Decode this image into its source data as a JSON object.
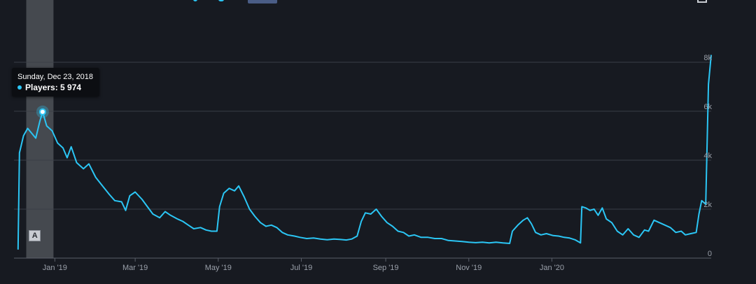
{
  "chart_data": {
    "type": "line",
    "title": "",
    "xlabel": "",
    "ylabel": "",
    "series": [
      {
        "name": "Players",
        "color": "#2bc6f5",
        "points": [
          [
            "2018-12-05",
            350
          ],
          [
            "2018-12-06",
            4300
          ],
          [
            "2018-12-09",
            5000
          ],
          [
            "2018-12-12",
            5300
          ],
          [
            "2018-12-15",
            5100
          ],
          [
            "2018-12-18",
            4900
          ],
          [
            "2018-12-21",
            5600
          ],
          [
            "2018-12-23",
            5974
          ],
          [
            "2018-12-26",
            5400
          ],
          [
            "2018-12-30",
            5200
          ],
          [
            "2019-01-03",
            4700
          ],
          [
            "2019-01-07",
            4500
          ],
          [
            "2019-01-10",
            4100
          ],
          [
            "2019-01-13",
            4550
          ],
          [
            "2019-01-17",
            3900
          ],
          [
            "2019-01-22",
            3650
          ],
          [
            "2019-01-26",
            3850
          ],
          [
            "2019-01-31",
            3300
          ],
          [
            "2019-02-05",
            2950
          ],
          [
            "2019-02-10",
            2600
          ],
          [
            "2019-02-14",
            2350
          ],
          [
            "2019-02-19",
            2300
          ],
          [
            "2019-02-22",
            1950
          ],
          [
            "2019-02-25",
            2550
          ],
          [
            "2019-03-01",
            2700
          ],
          [
            "2019-03-06",
            2400
          ],
          [
            "2019-03-10",
            2100
          ],
          [
            "2019-03-14",
            1800
          ],
          [
            "2019-03-19",
            1650
          ],
          [
            "2019-03-23",
            1900
          ],
          [
            "2019-03-27",
            1750
          ],
          [
            "2019-04-01",
            1600
          ],
          [
            "2019-04-05",
            1500
          ],
          [
            "2019-04-09",
            1350
          ],
          [
            "2019-04-13",
            1200
          ],
          [
            "2019-04-18",
            1250
          ],
          [
            "2019-04-22",
            1150
          ],
          [
            "2019-04-26",
            1100
          ],
          [
            "2019-04-30",
            1100
          ],
          [
            "2019-05-02",
            2100
          ],
          [
            "2019-05-05",
            2650
          ],
          [
            "2019-05-09",
            2850
          ],
          [
            "2019-05-13",
            2750
          ],
          [
            "2019-05-16",
            2950
          ],
          [
            "2019-05-20",
            2500
          ],
          [
            "2019-05-24",
            2000
          ],
          [
            "2019-05-28",
            1700
          ],
          [
            "2019-06-01",
            1450
          ],
          [
            "2019-06-05",
            1300
          ],
          [
            "2019-06-09",
            1350
          ],
          [
            "2019-06-13",
            1250
          ],
          [
            "2019-06-17",
            1050
          ],
          [
            "2019-06-21",
            950
          ],
          [
            "2019-06-26",
            900
          ],
          [
            "2019-06-30",
            850
          ],
          [
            "2019-07-05",
            800
          ],
          [
            "2019-07-10",
            820
          ],
          [
            "2019-07-15",
            780
          ],
          [
            "2019-07-20",
            750
          ],
          [
            "2019-07-25",
            780
          ],
          [
            "2019-07-30",
            760
          ],
          [
            "2019-08-03",
            740
          ],
          [
            "2019-08-07",
            780
          ],
          [
            "2019-08-11",
            900
          ],
          [
            "2019-08-14",
            1500
          ],
          [
            "2019-08-17",
            1850
          ],
          [
            "2019-08-21",
            1800
          ],
          [
            "2019-08-25",
            2000
          ],
          [
            "2019-08-29",
            1700
          ],
          [
            "2019-09-02",
            1450
          ],
          [
            "2019-09-06",
            1300
          ],
          [
            "2019-09-10",
            1100
          ],
          [
            "2019-09-14",
            1050
          ],
          [
            "2019-09-18",
            900
          ],
          [
            "2019-09-22",
            950
          ],
          [
            "2019-09-27",
            850
          ],
          [
            "2019-10-02",
            850
          ],
          [
            "2019-10-07",
            800
          ],
          [
            "2019-10-12",
            800
          ],
          [
            "2019-10-17",
            720
          ],
          [
            "2019-10-22",
            700
          ],
          [
            "2019-10-27",
            680
          ],
          [
            "2019-11-01",
            650
          ],
          [
            "2019-11-06",
            630
          ],
          [
            "2019-11-11",
            650
          ],
          [
            "2019-11-16",
            620
          ],
          [
            "2019-11-21",
            650
          ],
          [
            "2019-11-26",
            620
          ],
          [
            "2019-12-01",
            600
          ],
          [
            "2019-12-03",
            1100
          ],
          [
            "2019-12-07",
            1350
          ],
          [
            "2019-12-11",
            1550
          ],
          [
            "2019-12-14",
            1650
          ],
          [
            "2019-12-17",
            1400
          ],
          [
            "2019-12-20",
            1050
          ],
          [
            "2019-12-24",
            950
          ],
          [
            "2019-12-28",
            1000
          ],
          [
            "2020-01-02",
            920
          ],
          [
            "2020-01-06",
            900
          ],
          [
            "2020-01-10",
            850
          ],
          [
            "2020-01-14",
            820
          ],
          [
            "2020-01-18",
            750
          ],
          [
            "2020-01-22",
            620
          ],
          [
            "2020-01-23",
            2100
          ],
          [
            "2020-01-26",
            2050
          ],
          [
            "2020-01-29",
            1950
          ],
          [
            "2020-02-01",
            2000
          ],
          [
            "2020-02-04",
            1750
          ],
          [
            "2020-02-07",
            2050
          ],
          [
            "2020-02-10",
            1600
          ],
          [
            "2020-02-14",
            1450
          ],
          [
            "2020-02-18",
            1100
          ],
          [
            "2020-02-22",
            950
          ],
          [
            "2020-02-26",
            1200
          ],
          [
            "2020-03-01",
            950
          ],
          [
            "2020-03-05",
            850
          ],
          [
            "2020-03-09",
            1150
          ],
          [
            "2020-03-12",
            1100
          ],
          [
            "2020-03-16",
            1550
          ],
          [
            "2020-03-20",
            1450
          ],
          [
            "2020-03-24",
            1350
          ],
          [
            "2020-03-28",
            1250
          ],
          [
            "2020-04-01",
            1050
          ],
          [
            "2020-04-05",
            1100
          ],
          [
            "2020-04-08",
            950
          ],
          [
            "2020-04-12",
            1000
          ],
          [
            "2020-04-16",
            1050
          ],
          [
            "2020-04-18",
            1800
          ],
          [
            "2020-04-20",
            2350
          ],
          [
            "2020-04-23",
            2200
          ],
          [
            "2020-04-25",
            7100
          ],
          [
            "2020-04-27",
            8300
          ]
        ]
      }
    ],
    "x_range": [
      "2018-12-02",
      "2020-04-27"
    ],
    "x_ticks": [
      {
        "label": "Jan '19",
        "date": "2019-01-01"
      },
      {
        "label": "Mar '19",
        "date": "2019-03-01"
      },
      {
        "label": "May '19",
        "date": "2019-05-01"
      },
      {
        "label": "Jul '19",
        "date": "2019-07-01"
      },
      {
        "label": "Sep '19",
        "date": "2019-09-01"
      },
      {
        "label": "Nov '19",
        "date": "2019-11-01"
      },
      {
        "label": "Jan '20",
        "date": "2020-01-01"
      }
    ],
    "y_range": [
      0,
      8000
    ],
    "y_ticks": [
      {
        "label": "0",
        "value": 0
      },
      {
        "label": "2k",
        "value": 2000
      },
      {
        "label": "4k",
        "value": 4000
      },
      {
        "label": "6k",
        "value": 6000
      },
      {
        "label": "8k",
        "value": 8000
      }
    ],
    "grid": true,
    "highlight_band": [
      "2018-12-11",
      "2018-12-31"
    ],
    "highlight_point": {
      "date": "2018-12-23",
      "value": 5974
    },
    "annotation_date": "2018-12-17"
  },
  "tooltip": {
    "date": "Sunday, Dec 23, 2018",
    "label": "Players: 5 974"
  },
  "annotation": {
    "label": "A"
  },
  "colors": {
    "line": "#2bc6f5",
    "grid": "#3a3e47",
    "background": "#171a21",
    "band": "#55595f"
  }
}
